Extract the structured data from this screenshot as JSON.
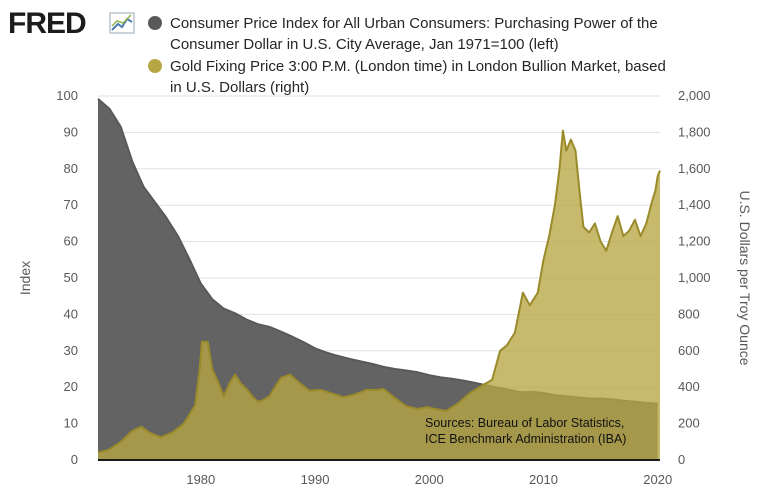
{
  "branding": {
    "logo_text": "FRED"
  },
  "chart_data": {
    "type": "area",
    "x_ticks": [
      1980,
      1990,
      2000,
      2010,
      2020
    ],
    "x_range": [
      1971,
      2020.2
    ],
    "left_axis": {
      "label": "Index",
      "range": [
        0,
        100
      ],
      "ticks": [
        0,
        10,
        20,
        30,
        40,
        50,
        60,
        70,
        80,
        90,
        100
      ]
    },
    "right_axis": {
      "label": "U.S. Dollars per Troy Ounce",
      "range": [
        0,
        2000
      ],
      "ticks": [
        0,
        200,
        400,
        600,
        800,
        1000,
        1200,
        1400,
        1600,
        1800,
        2000
      ],
      "tick_labels": [
        "0",
        "200",
        "400",
        "600",
        "800",
        "1,000",
        "1,200",
        "1,400",
        "1,600",
        "1,800",
        "2,000"
      ]
    },
    "series": [
      {
        "name": "Consumer Price Index for All Urban Consumers: Purchasing Power of the Consumer Dollar in U.S. City Average, Jan 1971=100 (left)",
        "legend_lines": [
          "Consumer Price Index for All Urban Consumers: Purchasing Power of the",
          "Consumer Dollar in U.S. City Average, Jan 1971=100 (left)"
        ],
        "axis": "left",
        "color": "#595959",
        "fill": "#636363",
        "x": [
          1971.0,
          1972.0,
          1973.0,
          1974.0,
          1975.0,
          1976.0,
          1977.0,
          1978.0,
          1979.0,
          1980.0,
          1981.0,
          1982.0,
          1983.0,
          1984.0,
          1985.0,
          1986.0,
          1987.0,
          1988.0,
          1989.0,
          1990.0,
          1991.0,
          1992.0,
          1993.0,
          1994.0,
          1995.0,
          1996.0,
          1997.0,
          1998.0,
          1999.0,
          2000.0,
          2001.0,
          2002.0,
          2003.0,
          2004.0,
          2005.0,
          2006.0,
          2007.0,
          2008.0,
          2009.0,
          2010.0,
          2011.0,
          2012.0,
          2013.0,
          2014.0,
          2015.0,
          2016.0,
          2017.0,
          2018.0,
          2019.0,
          2020.0
        ],
        "values": [
          99.2,
          96.5,
          91.5,
          82.0,
          75.0,
          70.8,
          66.5,
          61.5,
          55.2,
          48.5,
          44.2,
          41.6,
          40.3,
          38.6,
          37.3,
          36.6,
          35.3,
          33.9,
          32.4,
          30.7,
          29.5,
          28.6,
          27.8,
          27.1,
          26.4,
          25.6,
          25.0,
          24.6,
          24.1,
          23.3,
          22.7,
          22.3,
          21.8,
          21.2,
          20.5,
          19.9,
          19.3,
          18.6,
          18.7,
          18.4,
          17.8,
          17.5,
          17.2,
          16.9,
          16.9,
          16.7,
          16.3,
          16.0,
          15.7,
          15.5
        ]
      },
      {
        "name": "Gold Fixing Price 3:00 P.M. (London time) in London Bullion Market, based in U.S. Dollars (right)",
        "legend_lines": [
          "Gold Fixing Price 3:00 P.M. (London time) in London Bullion Market, based",
          "in U.S. Dollars (right)"
        ],
        "axis": "right",
        "color": "#9a8a2a",
        "fill": "#b7a743",
        "x": [
          1971.0,
          1972.0,
          1973.0,
          1974.0,
          1974.8,
          1975.5,
          1976.5,
          1977.5,
          1978.5,
          1979.5,
          1979.9,
          1980.1,
          1980.6,
          1981.0,
          1981.5,
          1982.0,
          1982.5,
          1983.0,
          1983.5,
          1984.0,
          1984.5,
          1985.0,
          1985.5,
          1986.0,
          1987.0,
          1987.8,
          1988.5,
          1989.5,
          1990.5,
          1991.5,
          1992.5,
          1993.5,
          1994.5,
          1995.5,
          1996.0,
          1997.0,
          1998.0,
          1999.0,
          1999.8,
          2000.5,
          2001.5,
          2002.5,
          2003.5,
          2004.5,
          2005.5,
          2006.2,
          2006.8,
          2007.5,
          2008.2,
          2008.8,
          2009.5,
          2010.0,
          2010.5,
          2011.0,
          2011.4,
          2011.7,
          2012.0,
          2012.4,
          2012.8,
          2013.2,
          2013.5,
          2014.0,
          2014.5,
          2015.0,
          2015.5,
          2016.0,
          2016.5,
          2017.0,
          2017.5,
          2018.0,
          2018.5,
          2019.0,
          2019.5,
          2019.8,
          2020.0,
          2020.2
        ],
        "values": [
          40,
          58,
          100,
          160,
          183,
          150,
          125,
          150,
          200,
          300,
          500,
          650,
          650,
          500,
          430,
          350,
          420,
          470,
          420,
          390,
          350,
          320,
          330,
          350,
          450,
          470,
          430,
          380,
          385,
          365,
          345,
          360,
          385,
          385,
          390,
          340,
          295,
          280,
          290,
          280,
          270,
          310,
          365,
          405,
          440,
          600,
          630,
          700,
          920,
          850,
          920,
          1100,
          1230,
          1400,
          1600,
          1810,
          1700,
          1760,
          1700,
          1450,
          1280,
          1250,
          1300,
          1200,
          1150,
          1250,
          1340,
          1230,
          1260,
          1320,
          1230,
          1300,
          1420,
          1480,
          1560,
          1590
        ]
      }
    ],
    "annotation_lines": [
      "Sources:  Bureau of Labor Statistics,",
      "ICE Benchmark Administration (IBA)"
    ]
  }
}
